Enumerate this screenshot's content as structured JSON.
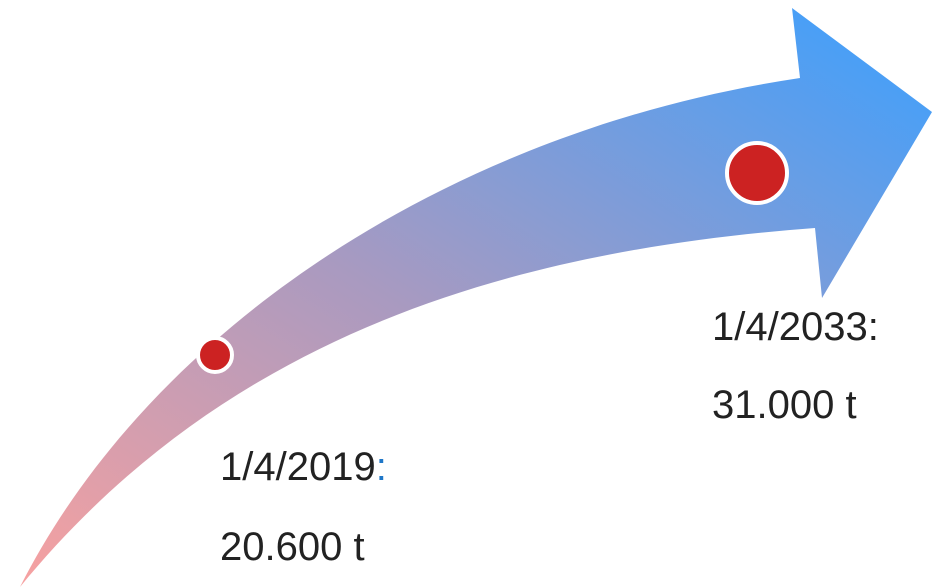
{
  "milestones": [
    {
      "date": "1/4/2019",
      "separator": ":",
      "amount": "20.600 t"
    },
    {
      "date": "1/4/2033",
      "separator": ":",
      "amount": "31.000 t"
    }
  ]
}
